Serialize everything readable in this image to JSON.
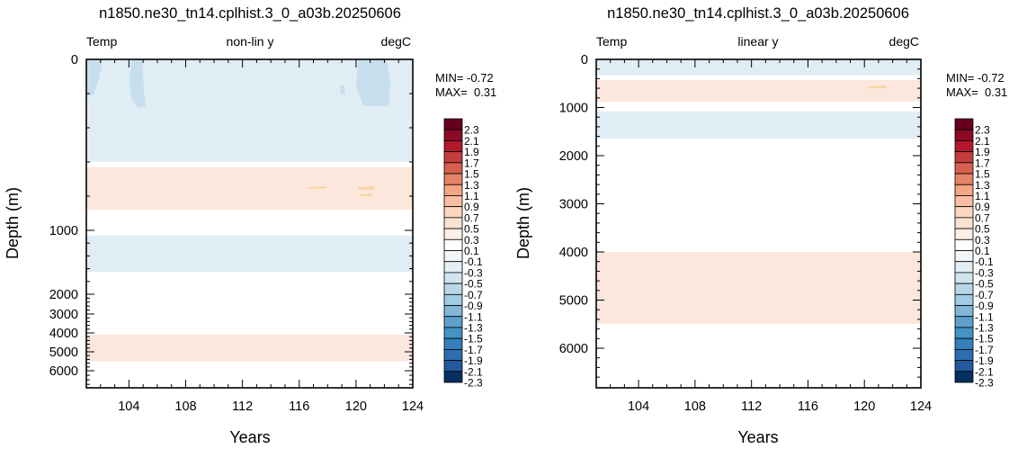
{
  "chart_data": [
    {
      "type": "heatmap",
      "title": "n1850.ne30_tn14.cplhist.3_0_a03b.20250606",
      "left_label": "Temp",
      "center_label": "non-lin y",
      "right_label": "degC",
      "xlabel": "Years",
      "ylabel": "Depth (m)",
      "x_ticks": [
        "104",
        "108",
        "112",
        "116",
        "120",
        "124"
      ],
      "y_ticks": [
        "0",
        "1000",
        "2000",
        "3000",
        "4000",
        "5000",
        "6000"
      ],
      "y_scale": "non-linear",
      "min_text": "MIN= -0.72",
      "max_text": "MAX=  0.31",
      "xlim": [
        101,
        124
      ],
      "ylim": [
        0,
        6750
      ],
      "bands": [
        {
          "depth_top": 0,
          "depth_bottom": 600,
          "value": -0.2
        },
        {
          "depth_top": 600,
          "depth_bottom": 630,
          "value": 0.0
        },
        {
          "depth_top": 630,
          "depth_bottom": 880,
          "value": 0.2
        },
        {
          "depth_top": 880,
          "depth_bottom": 1080,
          "value": 0.0
        },
        {
          "depth_top": 1080,
          "depth_bottom": 1650,
          "value": -0.2
        },
        {
          "depth_top": 1650,
          "depth_bottom": 4100,
          "value": 0.0
        },
        {
          "depth_top": 4100,
          "depth_bottom": 5500,
          "value": 0.2
        },
        {
          "depth_top": 5500,
          "depth_bottom": 6750,
          "value": 0.0
        }
      ],
      "colorbar_labels": [
        "2.3",
        "2.1",
        "1.9",
        "1.7",
        "1.5",
        "1.3",
        "1.1",
        "0.9",
        "0.7",
        "0.5",
        "0.3",
        "0.1",
        "-0.1",
        "-0.3",
        "-0.5",
        "-0.7",
        "-0.9",
        "-1.1",
        "-1.3",
        "-1.5",
        "-1.7",
        "-1.9",
        "-2.1",
        "-2.3"
      ]
    },
    {
      "type": "heatmap",
      "title": "n1850.ne30_tn14.cplhist.3_0_a03b.20250606",
      "left_label": "Temp",
      "center_label": "linear y",
      "right_label": "degC",
      "xlabel": "Years",
      "ylabel": "Depth (m)",
      "x_ticks": [
        "104",
        "108",
        "112",
        "116",
        "120",
        "124"
      ],
      "y_ticks": [
        "0",
        "1000",
        "2000",
        "3000",
        "4000",
        "5000",
        "6000"
      ],
      "y_scale": "linear",
      "min_text": "MIN= -0.72",
      "max_text": "MAX=  0.31",
      "xlim": [
        101,
        124
      ],
      "ylim": [
        0,
        6750
      ],
      "bands": [
        {
          "depth_top": 0,
          "depth_bottom": 330,
          "value": -0.2
        },
        {
          "depth_top": 330,
          "depth_bottom": 430,
          "value": 0.0
        },
        {
          "depth_top": 430,
          "depth_bottom": 880,
          "value": 0.2
        },
        {
          "depth_top": 880,
          "depth_bottom": 1080,
          "value": 0.0
        },
        {
          "depth_top": 1080,
          "depth_bottom": 1650,
          "value": -0.2
        },
        {
          "depth_top": 1650,
          "depth_bottom": 4000,
          "value": 0.0
        },
        {
          "depth_top": 4000,
          "depth_bottom": 5500,
          "value": 0.2
        },
        {
          "depth_top": 5500,
          "depth_bottom": 6750,
          "value": 0.0
        }
      ],
      "colorbar_labels": [
        "2.3",
        "2.1",
        "1.9",
        "1.7",
        "1.5",
        "1.3",
        "1.1",
        "0.9",
        "0.7",
        "0.5",
        "0.3",
        "0.1",
        "-0.1",
        "-0.3",
        "-0.5",
        "-0.7",
        "-0.9",
        "-1.1",
        "-1.3",
        "-1.5",
        "-1.7",
        "-1.9",
        "-2.1",
        "-2.3"
      ]
    }
  ],
  "colors": {
    "colorbar": [
      "#67001f",
      "#8b0a25",
      "#b2182b",
      "#c43c3c",
      "#d6604d",
      "#e58368",
      "#f4a582",
      "#f8bfa2",
      "#fbd6c1",
      "#fbe3d4",
      "#fdeee6",
      "#ffffff",
      "#f3f6f9",
      "#e3eef5",
      "#d1e5f0",
      "#b8d8e9",
      "#a1cbe2",
      "#81b6d7",
      "#5f9fcc",
      "#4393c3",
      "#3580ba",
      "#2e6daf",
      "#21599c",
      "#053061"
    ],
    "pos_band": "#fce7dc",
    "neg_band": "#e1edf5",
    "patch": "#c7dfed"
  }
}
